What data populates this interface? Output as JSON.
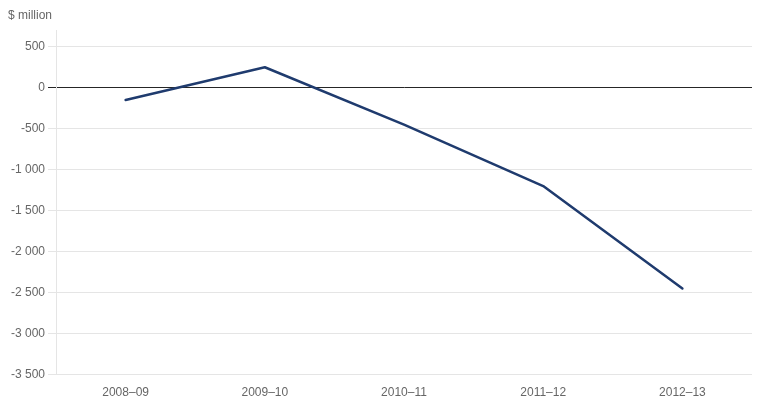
{
  "chart_data": {
    "type": "line",
    "ylabel": "$ million",
    "categories": [
      "2008–09",
      "2009–10",
      "2010–11",
      "2011–12",
      "2012–13"
    ],
    "values": [
      -150,
      250,
      -450,
      -1200,
      -2450
    ],
    "color": "#1F3B6E",
    "ylim": [
      -3500,
      700
    ],
    "yticks": [
      500,
      0,
      -500,
      {
        "value": -1000,
        "label": "-1 000"
      },
      {
        "value": -1500,
        "label": "-1 500"
      },
      {
        "value": -2000,
        "label": "-2 000"
      },
      {
        "value": -2500,
        "label": "-2 500"
      },
      {
        "value": -3000,
        "label": "-3 000"
      },
      {
        "value": -3500,
        "label": "-3 500"
      }
    ],
    "grid": true
  }
}
